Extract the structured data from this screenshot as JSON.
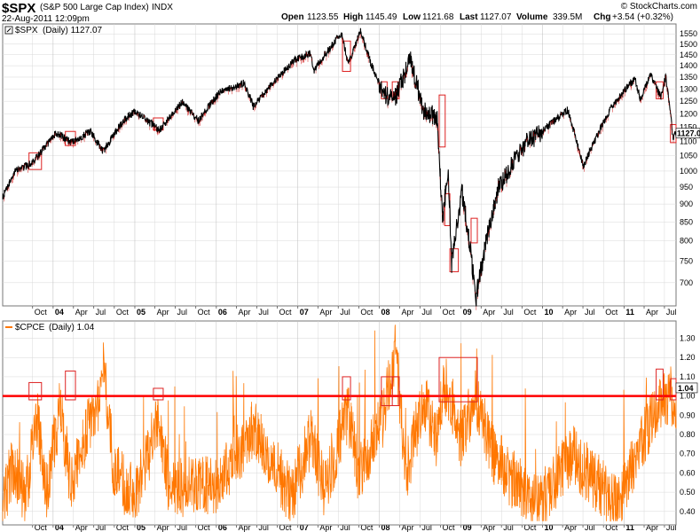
{
  "header": {
    "symbol": "$SPX",
    "name": "(S&P 500 Large Cap Index)",
    "exchange": "INDX",
    "timestamp": "22-Aug-2011 12:09pm",
    "open_label": "Open",
    "open_value": "1123.55",
    "high_label": "High",
    "high_value": "1145.49",
    "low_label": "Low",
    "low_value": "1121.68",
    "last_label": "Last",
    "last_value": "1127.07",
    "volume_label": "Volume",
    "volume_value": "339.5M",
    "chg_label": "Chg",
    "chg_value": "+3.54 (+0.32%)",
    "brand": "© StockCharts.com"
  },
  "colors": {
    "price": "#000000",
    "price_down": "#cc0000",
    "pcr": "#ff7700",
    "threshold": "#ff0000",
    "box": "#dd2222",
    "grid": "#d8d8d8"
  },
  "chart_data": [
    {
      "type": "line",
      "title": "$SPX (Daily) 1127.07",
      "legend_symbol": "$SPX",
      "legend_detail": "(Daily) 1127.07",
      "last_value_label": "1127.07",
      "y_scale": "log",
      "ylim": [
        650,
        1600
      ],
      "yticks": [
        700,
        750,
        800,
        850,
        900,
        950,
        1000,
        1050,
        1100,
        1150,
        1200,
        1250,
        1300,
        1350,
        1400,
        1450,
        1500,
        1550
      ],
      "x_date_range": [
        "2003-05-20",
        "2011-08-22"
      ],
      "series": [
        {
          "points": [
            [
              "2003-05-20",
              920
            ],
            [
              "2003-07-15",
              1000
            ],
            [
              "2003-09-15",
              1020
            ],
            [
              "2003-10-15",
              1040
            ],
            [
              "2004-01-15",
              1130
            ],
            [
              "2004-03-25",
              1095
            ],
            [
              "2004-06-15",
              1135
            ],
            [
              "2004-08-12",
              1065
            ],
            [
              "2004-11-15",
              1180
            ],
            [
              "2005-01-03",
              1210
            ],
            [
              "2005-04-20",
              1140
            ],
            [
              "2005-08-01",
              1245
            ],
            [
              "2005-10-12",
              1175
            ],
            [
              "2006-01-15",
              1285
            ],
            [
              "2006-05-05",
              1325
            ],
            [
              "2006-06-15",
              1230
            ],
            [
              "2006-12-15",
              1425
            ],
            [
              "2007-02-26",
              1455
            ],
            [
              "2007-03-14",
              1380
            ],
            [
              "2007-07-15",
              1555
            ],
            [
              "2007-08-15",
              1405
            ],
            [
              "2007-10-09",
              1565
            ],
            [
              "2007-11-26",
              1405
            ],
            [
              "2008-01-22",
              1275
            ],
            [
              "2008-03-15",
              1270
            ],
            [
              "2008-05-19",
              1425
            ],
            [
              "2008-07-15",
              1215
            ],
            [
              "2008-09-15",
              1190
            ],
            [
              "2008-10-10",
              850
            ],
            [
              "2008-11-04",
              1000
            ],
            [
              "2008-11-20",
              745
            ],
            [
              "2009-01-06",
              935
            ],
            [
              "2009-03-09",
              667
            ],
            [
              "2009-06-15",
              945
            ],
            [
              "2009-10-15",
              1090
            ],
            [
              "2010-01-19",
              1150
            ],
            [
              "2010-04-23",
              1215
            ],
            [
              "2010-07-02",
              1015
            ],
            [
              "2010-11-05",
              1225
            ],
            [
              "2011-02-18",
              1345
            ],
            [
              "2011-03-16",
              1255
            ],
            [
              "2011-04-29",
              1365
            ],
            [
              "2011-06-15",
              1265
            ],
            [
              "2011-07-07",
              1355
            ],
            [
              "2011-08-08",
              1115
            ],
            [
              "2011-08-22",
              1127
            ]
          ]
        }
      ]
    },
    {
      "type": "line",
      "title": "$CPCE (Daily) 1.04",
      "legend_symbol": "$CPCE",
      "legend_detail": "(Daily) 1.04",
      "last_value_label": "1.04",
      "ylim": [
        0.33,
        1.39
      ],
      "yticks": [
        0.4,
        0.5,
        0.6,
        0.7,
        0.8,
        0.9,
        1.0,
        1.1,
        1.2,
        1.3
      ],
      "ytick_labels": [
        "0.40",
        "0.50",
        "0.60",
        "0.70",
        "0.80",
        "0.90",
        "1.00",
        "1.10",
        "1.20",
        "1.30"
      ],
      "threshold": 1.0,
      "series": [
        {
          "points": [
            [
              "2003-05-20",
              0.55
            ],
            [
              "2003-07-01",
              0.75
            ],
            [
              "2003-09-01",
              0.6
            ],
            [
              "2003-10-20",
              1.02
            ],
            [
              "2003-12-01",
              0.62
            ],
            [
              "2004-02-01",
              1.05
            ],
            [
              "2004-03-20",
              0.66
            ],
            [
              "2004-05-20",
              0.9
            ],
            [
              "2004-07-20",
              1.08
            ],
            [
              "2004-08-15",
              1.27
            ],
            [
              "2004-10-01",
              0.72
            ],
            [
              "2005-01-01",
              0.6
            ],
            [
              "2005-04-20",
              1.0
            ],
            [
              "2005-06-01",
              0.65
            ],
            [
              "2006-01-01",
              0.65
            ],
            [
              "2006-06-15",
              0.95
            ],
            [
              "2006-12-01",
              0.6
            ],
            [
              "2007-03-01",
              0.9
            ],
            [
              "2007-05-01",
              0.62
            ],
            [
              "2007-08-15",
              1.04
            ],
            [
              "2007-10-01",
              0.7
            ],
            [
              "2008-01-20",
              1.02
            ],
            [
              "2008-03-15",
              1.35
            ],
            [
              "2008-05-01",
              0.72
            ],
            [
              "2008-07-15",
              1.1
            ],
            [
              "2008-09-15",
              0.9
            ],
            [
              "2008-10-15",
              1.2
            ],
            [
              "2008-11-20",
              1.08
            ],
            [
              "2009-01-01",
              0.9
            ],
            [
              "2009-03-05",
              1.12
            ],
            [
              "2009-06-01",
              0.8
            ],
            [
              "2009-12-01",
              0.55
            ],
            [
              "2010-02-01",
              0.62
            ],
            [
              "2010-05-10",
              0.82
            ],
            [
              "2010-07-01",
              0.75
            ],
            [
              "2010-12-01",
              0.55
            ],
            [
              "2011-03-15",
              0.85
            ],
            [
              "2011-06-01",
              1.08
            ],
            [
              "2011-08-08",
              1.12
            ],
            [
              "2011-08-22",
              1.04
            ]
          ]
        }
      ]
    }
  ],
  "x_axis": {
    "ticks": [
      {
        "date": "2003-10-01",
        "label": "Oct"
      },
      {
        "date": "2004-01-01",
        "label": "04",
        "year": true
      },
      {
        "date": "2004-04-01",
        "label": "Apr"
      },
      {
        "date": "2004-07-01",
        "label": "Jul"
      },
      {
        "date": "2004-10-01",
        "label": "Oct"
      },
      {
        "date": "2005-01-01",
        "label": "05",
        "year": true
      },
      {
        "date": "2005-04-01",
        "label": "Apr"
      },
      {
        "date": "2005-07-01",
        "label": "Jul"
      },
      {
        "date": "2005-10-01",
        "label": "Oct"
      },
      {
        "date": "2006-01-01",
        "label": "06",
        "year": true
      },
      {
        "date": "2006-04-01",
        "label": "Apr"
      },
      {
        "date": "2006-07-01",
        "label": "Jul"
      },
      {
        "date": "2006-10-01",
        "label": "Oct"
      },
      {
        "date": "2007-01-01",
        "label": "07",
        "year": true
      },
      {
        "date": "2007-04-01",
        "label": "Apr"
      },
      {
        "date": "2007-07-01",
        "label": "Jul"
      },
      {
        "date": "2007-10-01",
        "label": "Oct"
      },
      {
        "date": "2008-01-01",
        "label": "08",
        "year": true
      },
      {
        "date": "2008-04-01",
        "label": "Apr"
      },
      {
        "date": "2008-07-01",
        "label": "Jul"
      },
      {
        "date": "2008-10-01",
        "label": "Oct"
      },
      {
        "date": "2009-01-01",
        "label": "09",
        "year": true
      },
      {
        "date": "2009-04-01",
        "label": "Apr"
      },
      {
        "date": "2009-07-01",
        "label": "Jul"
      },
      {
        "date": "2009-10-01",
        "label": "Oct"
      },
      {
        "date": "2010-01-01",
        "label": "10",
        "year": true
      },
      {
        "date": "2010-04-01",
        "label": "Apr"
      },
      {
        "date": "2010-07-01",
        "label": "Jul"
      },
      {
        "date": "2010-10-01",
        "label": "Oct"
      },
      {
        "date": "2011-01-01",
        "label": "11",
        "year": true
      },
      {
        "date": "2011-04-01",
        "label": "Apr"
      },
      {
        "date": "2011-07-01",
        "label": "Jul"
      }
    ]
  },
  "highlight_boxes": {
    "price": [
      {
        "from": "2003-09-15",
        "to": "2003-11-10",
        "low": 1005,
        "high": 1060
      },
      {
        "from": "2004-02-25",
        "to": "2004-04-10",
        "low": 1085,
        "high": 1135
      },
      {
        "from": "2005-03-25",
        "to": "2005-05-08",
        "low": 1140,
        "high": 1185
      },
      {
        "from": "2007-07-20",
        "to": "2007-08-25",
        "low": 1375,
        "high": 1515
      },
      {
        "from": "2008-01-10",
        "to": "2008-02-05",
        "low": 1260,
        "high": 1330
      },
      {
        "from": "2008-02-28",
        "to": "2008-03-30",
        "low": 1260,
        "high": 1330
      },
      {
        "from": "2008-09-25",
        "to": "2008-10-22",
        "low": 1080,
        "high": 1275
      },
      {
        "from": "2008-10-20",
        "to": "2008-11-12",
        "low": 840,
        "high": 930
      },
      {
        "from": "2008-11-12",
        "to": "2008-12-20",
        "low": 725,
        "high": 780
      },
      {
        "from": "2009-02-15",
        "to": "2009-03-15",
        "low": 795,
        "high": 860
      },
      {
        "from": "2011-05-25",
        "to": "2011-06-25",
        "low": 1260,
        "high": 1330
      },
      {
        "from": "2011-07-28",
        "to": "2011-08-22",
        "low": 1095,
        "high": 1160
      }
    ],
    "pcr": [
      {
        "from": "2003-09-15",
        "to": "2003-11-10",
        "low": 0.98,
        "high": 1.07
      },
      {
        "from": "2004-02-25",
        "to": "2004-04-10",
        "low": 0.98,
        "high": 1.13
      },
      {
        "from": "2005-03-25",
        "to": "2005-05-08",
        "low": 0.98,
        "high": 1.04
      },
      {
        "from": "2007-07-20",
        "to": "2007-08-25",
        "low": 0.98,
        "high": 1.1
      },
      {
        "from": "2008-01-10",
        "to": "2008-03-30",
        "low": 0.95,
        "high": 1.1
      },
      {
        "from": "2008-02-28",
        "to": "2008-03-30",
        "low": 0.95,
        "high": 1.1
      },
      {
        "from": "2008-09-25",
        "to": "2009-03-15",
        "low": 0.97,
        "high": 1.2
      },
      {
        "from": "2011-05-25",
        "to": "2011-06-25",
        "low": 0.98,
        "high": 1.14
      },
      {
        "from": "2011-07-28",
        "to": "2011-08-22",
        "low": 0.98,
        "high": 1.09
      }
    ]
  }
}
